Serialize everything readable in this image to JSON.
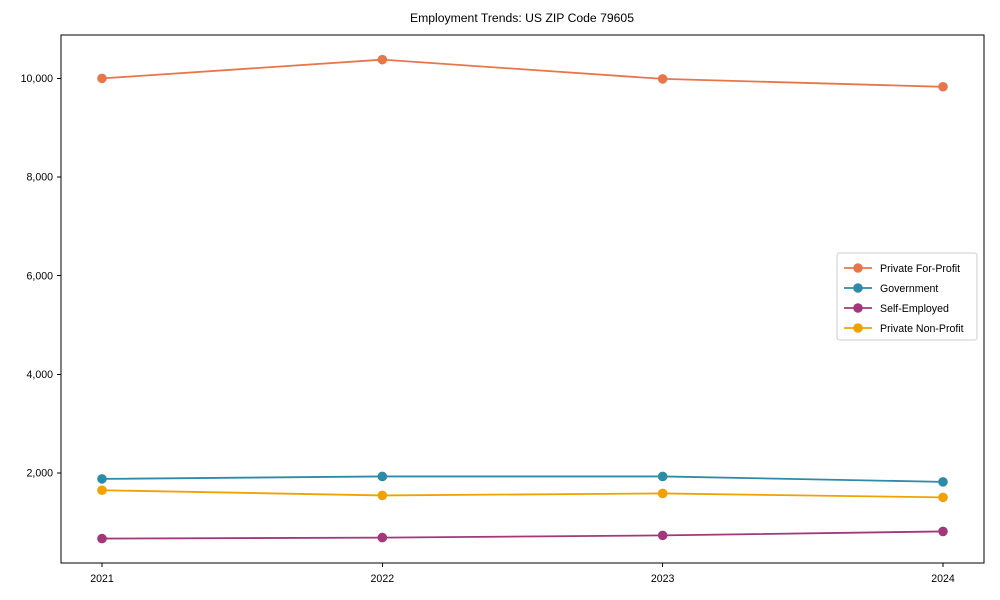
{
  "chart_data": {
    "type": "line",
    "title": "Employment Trends: US ZIP Code 79605",
    "categories": [
      "2021",
      "2022",
      "2023",
      "2024"
    ],
    "series": [
      {
        "name": "Private For-Profit",
        "color": "#E8764B",
        "values": [
          10000,
          10380,
          9990,
          9830
        ]
      },
      {
        "name": "Government",
        "color": "#2E8BA8",
        "values": [
          1880,
          1930,
          1930,
          1820
        ]
      },
      {
        "name": "Self-Employed",
        "color": "#A23779",
        "values": [
          670,
          690,
          735,
          815
        ]
      },
      {
        "name": "Private Non-Profit",
        "color": "#F0A202",
        "values": [
          1650,
          1545,
          1585,
          1505
        ]
      }
    ],
    "ylim": [
      175,
      10880
    ],
    "yticks": [
      2000,
      4000,
      6000,
      8000,
      10000
    ],
    "ytick_labels": [
      "2,000",
      "4,000",
      "6,000",
      "8,000",
      "10,000"
    ],
    "xlabel": "",
    "ylabel": "",
    "grid": false,
    "frame": true,
    "legend_position": "center-right",
    "marker": "circle",
    "axis_color": "#000000",
    "legend_border_color": "#cccccc",
    "legend_background": "#ffffff"
  }
}
